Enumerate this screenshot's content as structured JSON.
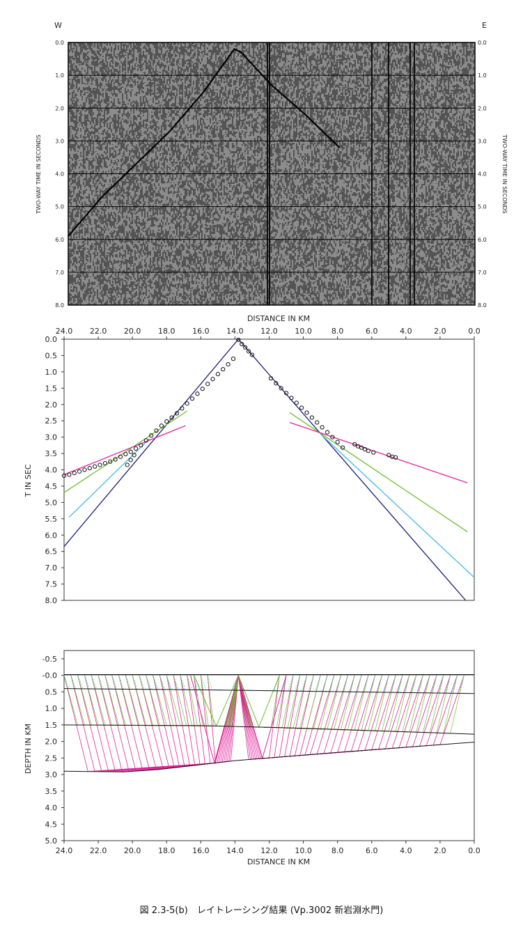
{
  "caption": "図 2.3-5(b)　レイトレーシング結果 (Vp.3002 新岩淵水門)",
  "colors": {
    "black": "#111111",
    "navy": "#1a1a7a",
    "cyan": "#3fb8e6",
    "green": "#6cbf2a",
    "magenta": "#e0239a"
  },
  "chart_data": [
    {
      "type": "seismic-section",
      "west_label": "W",
      "east_label": "E",
      "ylabel_left": "TWO-WAY TIME IN SECONDS",
      "ylabel_right": "TWO-WAY TIME IN SECONDS",
      "ylim": [
        0,
        8
      ],
      "y_ticks": [
        "0.0",
        "1.0",
        "2.0",
        "3.0",
        "4.0",
        "5.0",
        "6.0",
        "7.0",
        "8.0"
      ],
      "first_break_x_km": [
        24.0,
        22.0,
        20.0,
        18.0,
        16.0,
        14.2,
        13.8,
        12.0,
        10.0,
        8.0
      ],
      "first_break_t": [
        5.9,
        4.7,
        3.7,
        2.7,
        1.5,
        0.2,
        0.3,
        1.3,
        2.2,
        3.2
      ]
    },
    {
      "type": "scatter",
      "xlabel": "DISTANCE IN KM",
      "ylabel": "T IN SEC",
      "xlim": [
        24.0,
        0.0
      ],
      "ylim": [
        0,
        8
      ],
      "x_ticks": [
        "24.0",
        "22.0",
        "20.0",
        "18.0",
        "16.0",
        "14.0",
        "12.0",
        "10.0",
        "8.0",
        "6.0",
        "4.0",
        "2.0",
        "0.0"
      ],
      "y_ticks": [
        "0.0",
        "0.5",
        "1.0",
        "1.5",
        "2.0",
        "2.5",
        "3.0",
        "3.5",
        "4.0",
        "4.5",
        "5.0",
        "5.5",
        "6.0",
        "6.5",
        "7.0",
        "7.5",
        "8.0"
      ],
      "observed_x": [
        24.0,
        23.7,
        23.4,
        23.1,
        22.8,
        22.5,
        22.2,
        21.9,
        21.6,
        21.3,
        21.0,
        20.7,
        20.4,
        20.1,
        19.8,
        19.5,
        19.2,
        18.9,
        18.6,
        18.3,
        18.0,
        17.7,
        17.4,
        17.1,
        16.8,
        16.5,
        16.2,
        15.9,
        15.6,
        15.3,
        15.0,
        14.7,
        14.4,
        14.1,
        13.8,
        13.6,
        13.4,
        13.2,
        13.0,
        11.9,
        11.6,
        11.3,
        11.0,
        10.7,
        10.4,
        10.1,
        9.8,
        9.5,
        9.2,
        8.9,
        8.6,
        8.3,
        8.0,
        7.7,
        7.0,
        6.8,
        6.6,
        6.4,
        6.2,
        5.9,
        5.0,
        4.8,
        4.6,
        20.3,
        20.1,
        19.9
      ],
      "observed_t": [
        4.18,
        4.15,
        4.1,
        4.05,
        4.0,
        3.95,
        3.9,
        3.85,
        3.8,
        3.75,
        3.68,
        3.6,
        3.52,
        3.45,
        3.35,
        3.25,
        3.1,
        2.95,
        2.8,
        2.65,
        2.52,
        2.4,
        2.27,
        2.12,
        1.97,
        1.82,
        1.67,
        1.52,
        1.37,
        1.22,
        1.07,
        0.92,
        0.77,
        0.6,
        0.02,
        0.15,
        0.25,
        0.37,
        0.48,
        1.2,
        1.35,
        1.5,
        1.65,
        1.8,
        1.95,
        2.1,
        2.25,
        2.4,
        2.55,
        2.7,
        2.85,
        3.0,
        3.15,
        3.32,
        3.22,
        3.28,
        3.32,
        3.37,
        3.42,
        3.47,
        3.55,
        3.6,
        3.62,
        3.85,
        3.7,
        3.55
      ],
      "series": [
        {
          "color": "#1a1a7a",
          "x": [
            24.0,
            13.8,
            0.5
          ],
          "y": [
            6.35,
            0.0,
            8.0
          ]
        },
        {
          "color": "#3fb8e6",
          "x": [
            23.7,
            19.0
          ],
          "y": [
            5.45,
            3.05
          ]
        },
        {
          "color": "#3fb8e6",
          "x": [
            9.0,
            0.0
          ],
          "y": [
            2.9,
            7.3
          ]
        },
        {
          "color": "#6cbf2a",
          "x": [
            24.0,
            16.8
          ],
          "y": [
            4.7,
            2.2
          ]
        },
        {
          "color": "#6cbf2a",
          "x": [
            10.8,
            0.4
          ],
          "y": [
            2.25,
            5.9
          ]
        },
        {
          "color": "#e0239a",
          "x": [
            24.0,
            16.9
          ],
          "y": [
            4.15,
            2.65
          ]
        },
        {
          "color": "#e0239a",
          "x": [
            10.8,
            0.4
          ],
          "y": [
            2.55,
            4.4
          ]
        }
      ]
    },
    {
      "type": "line",
      "xlabel": "DISTANCE IN KM",
      "ylabel": "DEPTH IN KM",
      "xlim": [
        24.0,
        0.0
      ],
      "ylim": [
        -0.75,
        5.0
      ],
      "x_ticks": [
        "24.0",
        "22.0",
        "20.0",
        "18.0",
        "16.0",
        "14.0",
        "12.0",
        "10.0",
        "8.0",
        "6.0",
        "4.0",
        "2.0",
        "0.0"
      ],
      "y_ticks": [
        "-0.5",
        "-0.0",
        "0.5",
        "1.0",
        "1.5",
        "2.0",
        "2.5",
        "3.0",
        "3.5",
        "4.0",
        "4.5",
        "5.0"
      ],
      "shot_x": 13.8,
      "layers": [
        {
          "x": [
            24.0,
            0.0
          ],
          "y": [
            -0.02,
            -0.02
          ]
        },
        {
          "x": [
            24.0,
            14.0,
            0.0
          ],
          "y": [
            0.4,
            0.45,
            0.55
          ]
        },
        {
          "x": [
            24.0,
            16.0,
            10.0,
            0.0
          ],
          "y": [
            1.5,
            1.52,
            1.6,
            1.78
          ]
        },
        {
          "x": [
            24.0,
            20.5,
            18.5,
            14.0,
            8.0,
            0.0
          ],
          "y": [
            2.9,
            2.92,
            2.85,
            2.58,
            2.33,
            2.02
          ]
        }
      ],
      "ray_endpoints_km": [
        24.0,
        23.6,
        23.2,
        22.8,
        22.4,
        22.0,
        21.6,
        21.2,
        20.8,
        20.4,
        20.0,
        19.6,
        19.2,
        18.8,
        18.4,
        18.0,
        17.6,
        17.2,
        16.8,
        16.4,
        16.0,
        15.6,
        11.4,
        11.0,
        10.6,
        10.2,
        9.8,
        9.4,
        9.0,
        8.6,
        8.2,
        7.8,
        7.4,
        7.0,
        6.6,
        6.2,
        5.8,
        5.4,
        5.0,
        4.6,
        4.2,
        3.8,
        3.4,
        3.0,
        2.6,
        2.2,
        1.8,
        1.4,
        1.0,
        0.6
      ],
      "reflect_deep_km": [
        15.2,
        12.4
      ],
      "reflect_mid_km": [
        15.1,
        12.6
      ]
    }
  ]
}
